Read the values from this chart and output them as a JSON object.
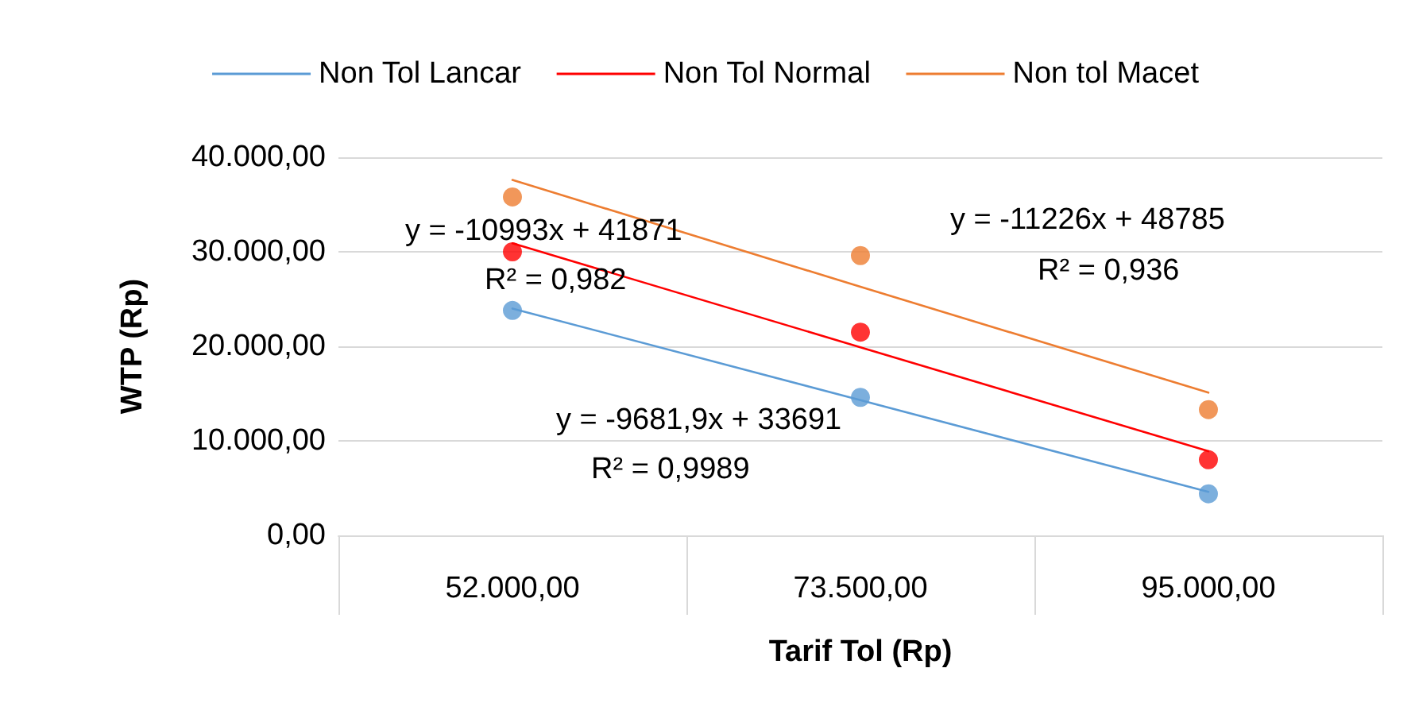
{
  "chart_data": {
    "type": "scatter",
    "xlabel": "Tarif Tol (Rp)",
    "ylabel": "WTP (Rp)",
    "categories": [
      "52.000,00",
      "73.500,00",
      "95.000,00"
    ],
    "ylim": [
      0,
      40000
    ],
    "yticks": [
      {
        "value": 0,
        "label": "0,00"
      },
      {
        "value": 10000,
        "label": "10.000,00"
      },
      {
        "value": 20000,
        "label": "20.000,00"
      },
      {
        "value": 30000,
        "label": "30.000,00"
      },
      {
        "value": 40000,
        "label": "40.000,00"
      }
    ],
    "grid": "y",
    "legend": "top",
    "marker": "circle",
    "series": [
      {
        "type": "line",
        "name": "Non Tol Lancar",
        "color": "#5b9bd5",
        "marker": "none",
        "values": [
          24000,
          14300,
          4600
        ]
      },
      {
        "type": "line",
        "name": "Non Tol Normal",
        "color": "#ff0000",
        "marker": "none",
        "values": [
          30900,
          19900,
          8900
        ]
      },
      {
        "type": "line",
        "name": "Non tol Macet",
        "color": "#ed7d31",
        "marker": "none",
        "values": [
          37600,
          26300,
          15100
        ]
      },
      {
        "color": "#5b9bd5",
        "x": [
          "52.000,00",
          "73.500,00",
          "95.000,00"
        ],
        "values": [
          23800,
          14600,
          4400
        ]
      },
      {
        "color": "#ff0000",
        "x": [
          "52.000,00",
          "73.500,00",
          "95.000,00"
        ],
        "values": [
          30000,
          21500,
          8000
        ]
      },
      {
        "color": "#ed7d31",
        "x": [
          "52.000,00",
          "73.500,00",
          "95.000,00"
        ],
        "values": [
          35800,
          29600,
          13300
        ]
      }
    ],
    "annotations": [
      "y = -10993x + 41871",
      "R² = 0,982",
      "y = -11226x + 48785",
      "R² = 0,936",
      "y = -9681,9x + 33691",
      "R² = 0,9989"
    ]
  }
}
